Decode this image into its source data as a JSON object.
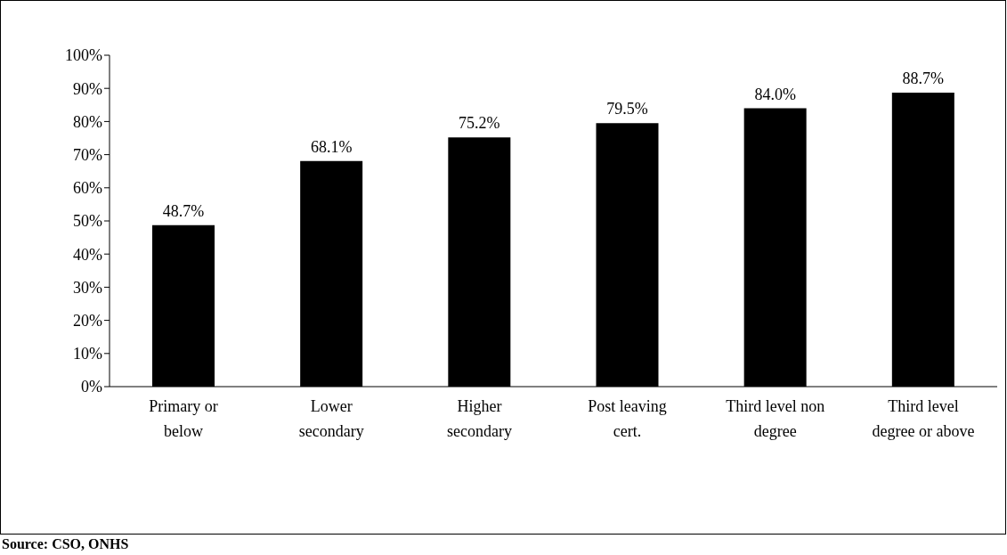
{
  "chart_data": {
    "type": "bar",
    "categories": [
      "Primary or below",
      "Lower secondary",
      "Higher secondary",
      "Post leaving cert.",
      "Third level non degree",
      "Third level degree or above"
    ],
    "values": [
      48.7,
      68.1,
      75.2,
      79.5,
      84.0,
      88.7
    ],
    "value_labels": [
      "48.7%",
      "68.1%",
      "75.2%",
      "79.5%",
      "84.0%",
      "88.7%"
    ],
    "color": "#000000",
    "ylim": [
      0,
      100
    ],
    "yticks": [
      {
        "value": 0,
        "label": "0%"
      },
      {
        "value": 10,
        "label": "10%"
      },
      {
        "value": 20,
        "label": "20%"
      },
      {
        "value": 30,
        "label": "30%"
      },
      {
        "value": 40,
        "label": "40%"
      },
      {
        "value": 50,
        "label": "50%"
      },
      {
        "value": 60,
        "label": "60%"
      },
      {
        "value": 70,
        "label": "70%"
      },
      {
        "value": 80,
        "label": "80%"
      },
      {
        "value": 90,
        "label": "90%"
      },
      {
        "value": 100,
        "label": "100%"
      }
    ],
    "grid": false,
    "legend": false,
    "annotations": [
      "Source: CSO, ONHS"
    ]
  }
}
